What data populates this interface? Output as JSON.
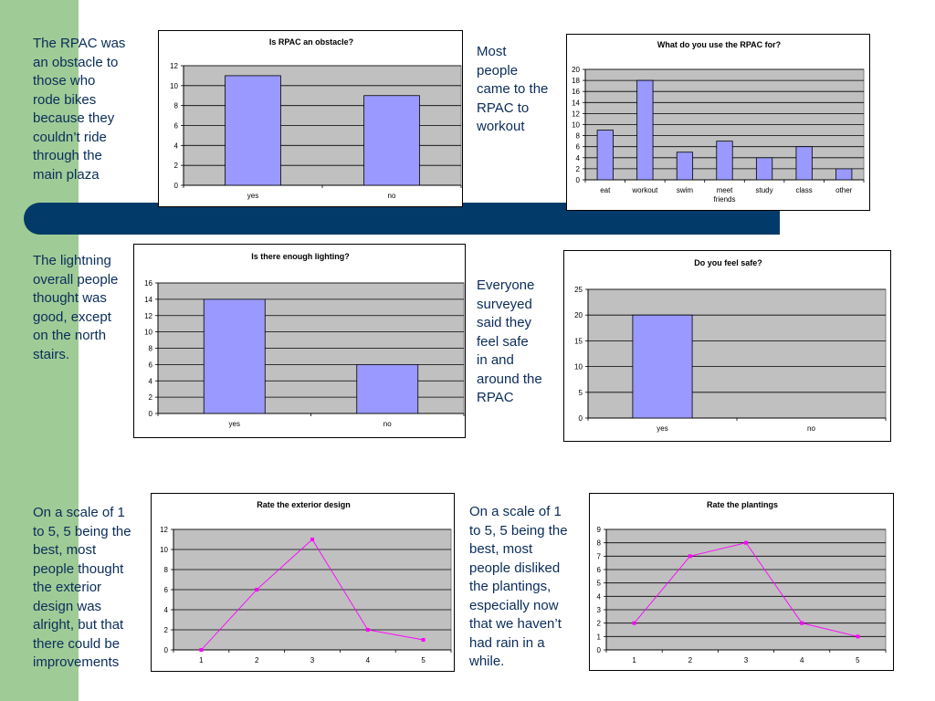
{
  "captions": {
    "c1": [
      "The RPAC was",
      "an obstacle to",
      "those who",
      "rode bikes",
      "because they",
      "couldn’t ride",
      "through the",
      "main plaza"
    ],
    "c2": [
      "Most",
      "people",
      "came to the",
      "RPAC to",
      "workout"
    ],
    "c3": [
      "The lightning",
      "overall people",
      "thought was",
      "good, except",
      "on the north",
      "stairs."
    ],
    "c4": [
      "Everyone",
      "surveyed",
      "said they",
      "feel safe",
      "in and",
      "around the",
      "RPAC"
    ],
    "c5": [
      "On a scale of 1",
      "to 5, 5 being the",
      "best, most",
      "people thought",
      "the exterior",
      "design was",
      "alright, but that",
      "there could be",
      "improvements"
    ],
    "c6": [
      "On a scale of 1",
      "to 5, 5 being the",
      "best, most",
      "people disliked",
      "the plantings,",
      "especially now",
      "that we haven’t",
      "had rain in a",
      "while."
    ]
  },
  "colors": {
    "green": "#9fcc96",
    "navy": "#023b69",
    "plot_bg": "#c0c0c0",
    "bar": "#9999ff",
    "line": "#ff00ff",
    "caption_text": "#0a2c5a"
  },
  "chart_data": [
    {
      "id": "chart1",
      "type": "bar",
      "title": "Is RPAC an obstacle?",
      "categories": [
        "yes",
        "no"
      ],
      "values": [
        11,
        9
      ],
      "ylim": [
        0,
        12
      ],
      "yticks": [
        0,
        2,
        4,
        6,
        8,
        10,
        12
      ],
      "grid": true
    },
    {
      "id": "chart2",
      "type": "bar",
      "title": "What do you use the RPAC for?",
      "categories": [
        "eat",
        "workout",
        "swim",
        "meet friends",
        "study",
        "class",
        "other"
      ],
      "values": [
        9,
        18,
        5,
        7,
        4,
        6,
        2
      ],
      "ylim": [
        0,
        20
      ],
      "yticks": [
        0,
        2,
        4,
        6,
        8,
        10,
        12,
        14,
        16,
        18,
        20
      ],
      "grid": true
    },
    {
      "id": "chart3",
      "type": "bar",
      "title": "Is there enough lighting?",
      "categories": [
        "yes",
        "no"
      ],
      "values": [
        14,
        6
      ],
      "ylim": [
        0,
        16
      ],
      "yticks": [
        0,
        2,
        4,
        6,
        8,
        10,
        12,
        14,
        16
      ],
      "grid": true
    },
    {
      "id": "chart4",
      "type": "bar",
      "title": "Do you feel safe?",
      "categories": [
        "yes",
        "no"
      ],
      "values": [
        20,
        0
      ],
      "ylim": [
        0,
        25
      ],
      "yticks": [
        0,
        5,
        10,
        15,
        20,
        25
      ],
      "grid": true
    },
    {
      "id": "chart5",
      "type": "line",
      "title": "Rate the exterior design",
      "categories": [
        "1",
        "2",
        "3",
        "4",
        "5"
      ],
      "values": [
        0,
        6,
        11,
        2,
        1
      ],
      "ylim": [
        0,
        12
      ],
      "yticks": [
        0,
        2,
        4,
        6,
        8,
        10,
        12
      ],
      "grid": true
    },
    {
      "id": "chart6",
      "type": "line",
      "title": "Rate the plantings",
      "categories": [
        "1",
        "2",
        "3",
        "4",
        "5"
      ],
      "values": [
        2,
        7,
        8,
        2,
        1
      ],
      "ylim": [
        0,
        9
      ],
      "yticks": [
        0,
        1,
        2,
        3,
        4,
        5,
        6,
        7,
        8,
        9
      ],
      "grid": true
    }
  ]
}
